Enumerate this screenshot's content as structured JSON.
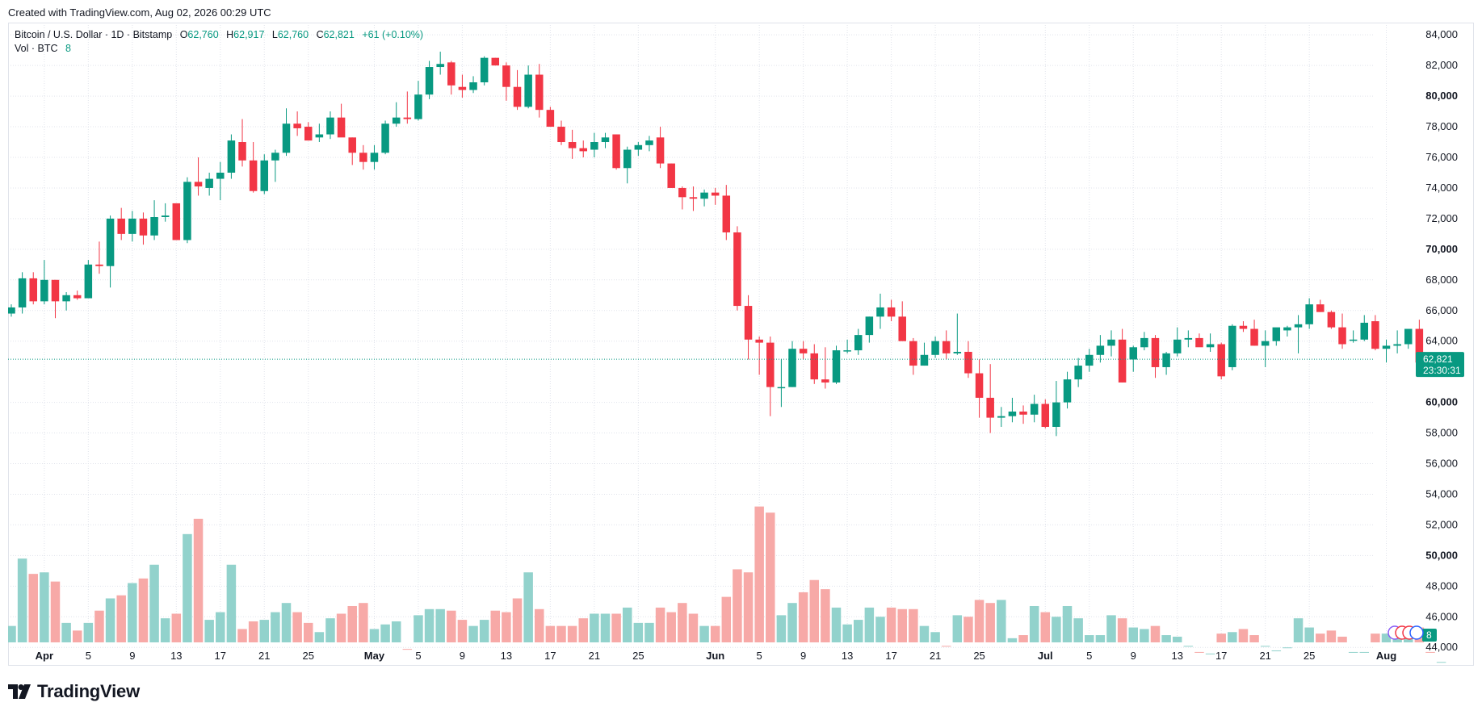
{
  "header": {
    "created_text": "Created with TradingView.com, Aug 02, 2026 00:29 UTC"
  },
  "legend": {
    "symbol": "Bitcoin / U.S. Dollar · 1D · Bitstamp",
    "o_label": "O",
    "o_value": "62,760",
    "h_label": "H",
    "h_value": "62,917",
    "l_label": "L",
    "l_value": "62,760",
    "c_label": "C",
    "c_value": "62,821",
    "change": "+61 (+0.10%)",
    "vol_label": "Vol · BTC",
    "vol_value": "8"
  },
  "price_tag": {
    "price": "62,821",
    "countdown": "23:30:31",
    "price_value": 62821
  },
  "vol_tag": {
    "value": "8"
  },
  "logo": {
    "text": "TradingView"
  },
  "colors": {
    "up": "#089981",
    "down": "#f23645",
    "vol_up": "#92d2cc",
    "vol_down": "#f7a9a7",
    "grid": "#e0e3eb",
    "text": "#131722"
  },
  "chart_data": {
    "type": "candlestick",
    "title": "Bitcoin / U.S. Dollar · 1D · Bitstamp",
    "ylim": [
      42800,
      84800
    ],
    "y_ticks": [
      {
        "v": 84000,
        "t": "84,000",
        "b": false
      },
      {
        "v": 82000,
        "t": "82,000",
        "b": false
      },
      {
        "v": 80000,
        "t": "80,000",
        "b": true
      },
      {
        "v": 78000,
        "t": "78,000",
        "b": false
      },
      {
        "v": 76000,
        "t": "76,000",
        "b": false
      },
      {
        "v": 74000,
        "t": "74,000",
        "b": false
      },
      {
        "v": 72000,
        "t": "72,000",
        "b": false
      },
      {
        "v": 70000,
        "t": "70,000",
        "b": true
      },
      {
        "v": 68000,
        "t": "68,000",
        "b": false
      },
      {
        "v": 66000,
        "t": "66,000",
        "b": false
      },
      {
        "v": 64000,
        "t": "64,000",
        "b": false
      },
      {
        "v": 60000,
        "t": "60,000",
        "b": true
      },
      {
        "v": 58000,
        "t": "58,000",
        "b": false
      },
      {
        "v": 56000,
        "t": "56,000",
        "b": false
      },
      {
        "v": 54000,
        "t": "54,000",
        "b": false
      },
      {
        "v": 52000,
        "t": "52,000",
        "b": false
      },
      {
        "v": 50000,
        "t": "50,000",
        "b": true
      },
      {
        "v": 48000,
        "t": "48,000",
        "b": false
      },
      {
        "v": 46000,
        "t": "46,000",
        "b": false
      },
      {
        "v": 44000,
        "t": "44,000",
        "b": false
      }
    ],
    "x_ticks": [
      {
        "i": 3,
        "t": "Apr",
        "b": true
      },
      {
        "i": 7,
        "t": "5",
        "b": false
      },
      {
        "i": 11,
        "t": "9",
        "b": false
      },
      {
        "i": 15,
        "t": "13",
        "b": false
      },
      {
        "i": 19,
        "t": "17",
        "b": false
      },
      {
        "i": 23,
        "t": "21",
        "b": false
      },
      {
        "i": 27,
        "t": "25",
        "b": false
      },
      {
        "i": 33,
        "t": "May",
        "b": true
      },
      {
        "i": 37,
        "t": "5",
        "b": false
      },
      {
        "i": 41,
        "t": "9",
        "b": false
      },
      {
        "i": 45,
        "t": "13",
        "b": false
      },
      {
        "i": 49,
        "t": "17",
        "b": false
      },
      {
        "i": 53,
        "t": "21",
        "b": false
      },
      {
        "i": 57,
        "t": "25",
        "b": false
      },
      {
        "i": 64,
        "t": "Jun",
        "b": true
      },
      {
        "i": 68,
        "t": "5",
        "b": false
      },
      {
        "i": 72,
        "t": "9",
        "b": false
      },
      {
        "i": 76,
        "t": "13",
        "b": false
      },
      {
        "i": 80,
        "t": "17",
        "b": false
      },
      {
        "i": 84,
        "t": "21",
        "b": false
      },
      {
        "i": 88,
        "t": "25",
        "b": false
      },
      {
        "i": 94,
        "t": "Jul",
        "b": true
      },
      {
        "i": 98,
        "t": "5",
        "b": false
      },
      {
        "i": 102,
        "t": "9",
        "b": false
      },
      {
        "i": 106,
        "t": "13",
        "b": false
      },
      {
        "i": 110,
        "t": "17",
        "b": false
      },
      {
        "i": 114,
        "t": "21",
        "b": false
      },
      {
        "i": 118,
        "t": "25",
        "b": false
      },
      {
        "i": 125,
        "t": "Aug",
        "b": true
      }
    ],
    "candles": [
      [
        65800,
        66400,
        65600,
        66200,
        45400
      ],
      [
        66200,
        68500,
        65800,
        68100,
        49800
      ],
      [
        68100,
        68500,
        66400,
        66600,
        48800
      ],
      [
        66600,
        69300,
        66400,
        68000,
        48900
      ],
      [
        68000,
        68000,
        65500,
        66600,
        48300
      ],
      [
        66600,
        67200,
        66000,
        67000,
        45600
      ],
      [
        67000,
        67300,
        66700,
        66800,
        45100
      ],
      [
        66800,
        69300,
        66800,
        69000,
        45600
      ],
      [
        69000,
        70500,
        68400,
        68900,
        46400
      ],
      [
        68900,
        72200,
        67500,
        72000,
        47200
      ],
      [
        72000,
        72700,
        70600,
        71000,
        47400
      ],
      [
        71000,
        72500,
        70500,
        72000,
        48200
      ],
      [
        72000,
        72400,
        70300,
        70900,
        48500
      ],
      [
        70900,
        73200,
        70600,
        72100,
        49400
      ],
      [
        72100,
        73000,
        71800,
        72200,
        45900
      ],
      [
        73000,
        73000,
        70600,
        70600,
        46200
      ],
      [
        70600,
        74700,
        70400,
        74400,
        51400
      ],
      [
        74400,
        76000,
        73500,
        74100,
        52400
      ],
      [
        74000,
        75000,
        73500,
        74600,
        45800
      ],
      [
        74600,
        75700,
        73200,
        75000,
        46300
      ],
      [
        75000,
        77500,
        74600,
        77100,
        49400
      ],
      [
        77000,
        78500,
        75400,
        75800,
        45200
      ],
      [
        75800,
        77000,
        73700,
        73800,
        45700
      ],
      [
        73800,
        76200,
        73600,
        75800,
        45800
      ],
      [
        75800,
        76500,
        74400,
        76300,
        46300
      ],
      [
        76300,
        79200,
        76100,
        78200,
        46900
      ],
      [
        78200,
        79000,
        77400,
        77900,
        46300
      ],
      [
        78000,
        78300,
        77100,
        77100,
        45600
      ],
      [
        77300,
        78200,
        77000,
        77500,
        45000
      ],
      [
        77500,
        79000,
        77200,
        78600,
        45900
      ],
      [
        78600,
        79500,
        77500,
        77300,
        46200
      ],
      [
        77300,
        77300,
        75500,
        76300,
        46700
      ],
      [
        76300,
        76800,
        75200,
        75700,
        46900
      ],
      [
        75700,
        76800,
        75200,
        76300,
        45200
      ],
      [
        76300,
        78400,
        76200,
        78200,
        45500
      ],
      [
        78200,
        79600,
        78000,
        78600,
        45700
      ],
      [
        78600,
        80300,
        78200,
        78500,
        43900
      ],
      [
        78500,
        81000,
        78400,
        80100,
        46100
      ],
      [
        80100,
        82300,
        79800,
        81900,
        46500
      ],
      [
        81900,
        82900,
        81400,
        82100,
        46500
      ],
      [
        82200,
        82300,
        80100,
        80700,
        46400
      ],
      [
        80600,
        81400,
        79900,
        80400,
        45800
      ],
      [
        80400,
        81300,
        80200,
        80900,
        45400
      ],
      [
        80900,
        82600,
        80700,
        82500,
        45800
      ],
      [
        82500,
        82500,
        82000,
        82000,
        46400
      ],
      [
        82000,
        82200,
        79700,
        80600,
        46300
      ],
      [
        80600,
        81700,
        79100,
        79300,
        47200
      ],
      [
        79300,
        82000,
        79200,
        81400,
        48900
      ],
      [
        81400,
        82100,
        78600,
        79100,
        46500
      ],
      [
        79100,
        79300,
        78000,
        78000,
        45400
      ],
      [
        78000,
        78400,
        76800,
        77000,
        45400
      ],
      [
        77000,
        77800,
        75900,
        76600,
        45400
      ],
      [
        76600,
        77100,
        76000,
        76400,
        45900
      ],
      [
        76500,
        77600,
        76000,
        77000,
        46200
      ],
      [
        77000,
        77600,
        76600,
        77300,
        46200
      ],
      [
        77500,
        77500,
        75200,
        75300,
        46200
      ],
      [
        75300,
        76700,
        74300,
        76500,
        46600
      ],
      [
        76500,
        77000,
        76100,
        76800,
        45600
      ],
      [
        76800,
        77400,
        76400,
        77100,
        45600
      ],
      [
        77300,
        78000,
        75300,
        75600,
        46600
      ],
      [
        75600,
        75600,
        74000,
        74000,
        46300
      ],
      [
        74000,
        74100,
        72600,
        73400,
        46900
      ],
      [
        73400,
        74100,
        72500,
        73300,
        46200
      ],
      [
        73300,
        73900,
        72800,
        73700,
        45400
      ],
      [
        73700,
        74000,
        72900,
        73500,
        45400
      ],
      [
        73500,
        74200,
        70600,
        71100,
        47300
      ],
      [
        71100,
        71500,
        66000,
        66300,
        49100
      ],
      [
        66300,
        67000,
        62800,
        64100,
        48900
      ],
      [
        64100,
        64300,
        61800,
        63900,
        53200
      ],
      [
        63900,
        64300,
        59100,
        61000,
        52800
      ],
      [
        61000,
        62800,
        59700,
        61000,
        46100
      ],
      [
        61000,
        64000,
        61000,
        63500,
        46900
      ],
      [
        63500,
        64000,
        62800,
        63200,
        47600
      ],
      [
        63200,
        63800,
        61200,
        61500,
        48400
      ],
      [
        61500,
        63600,
        60900,
        61300,
        47800
      ],
      [
        61300,
        63700,
        61200,
        63400,
        46600
      ],
      [
        63400,
        64100,
        63200,
        63400,
        45500
      ],
      [
        63400,
        64800,
        63100,
        64400,
        45800
      ],
      [
        64400,
        65600,
        63900,
        65600,
        46600
      ],
      [
        65600,
        67100,
        64800,
        66200,
        46000
      ],
      [
        66200,
        66700,
        65300,
        65600,
        46600
      ],
      [
        65600,
        66600,
        64200,
        64000,
        46500
      ],
      [
        64000,
        64200,
        61800,
        62400,
        46500
      ],
      [
        62400,
        63900,
        62400,
        63100,
        45400
      ],
      [
        63100,
        64300,
        62900,
        64000,
        45000
      ],
      [
        64000,
        64700,
        62800,
        63200,
        44100
      ],
      [
        63200,
        65800,
        63100,
        63300,
        46100
      ],
      [
        63300,
        64000,
        61600,
        61900,
        46000
      ],
      [
        61900,
        62800,
        59000,
        60300,
        47100
      ],
      [
        60300,
        62500,
        58000,
        59000,
        46900
      ],
      [
        59000,
        59700,
        58400,
        59100,
        47100
      ],
      [
        59100,
        60300,
        58700,
        59400,
        44600
      ],
      [
        59400,
        59800,
        58600,
        59200,
        44800
      ],
      [
        59200,
        60500,
        58700,
        59900,
        46700
      ],
      [
        59900,
        60200,
        58300,
        58400,
        46300
      ],
      [
        58400,
        61400,
        57800,
        60000,
        46000
      ],
      [
        60000,
        62000,
        59600,
        61500,
        46700
      ],
      [
        61500,
        62900,
        61000,
        62400,
        45900
      ],
      [
        62400,
        63500,
        62000,
        63100,
        44800
      ],
      [
        63100,
        64400,
        62600,
        63700,
        44800
      ],
      [
        63700,
        64700,
        63000,
        64100,
        46100
      ],
      [
        64100,
        64800,
        61300,
        61300,
        45900
      ],
      [
        62800,
        63700,
        62000,
        63600,
        45300
      ],
      [
        63600,
        64600,
        63400,
        64200,
        45200
      ],
      [
        64200,
        64400,
        61600,
        62300,
        45400
      ],
      [
        62300,
        63300,
        61800,
        63200,
        44800
      ],
      [
        63200,
        64900,
        63000,
        64100,
        44700
      ],
      [
        64100,
        64700,
        63600,
        64200,
        44100
      ],
      [
        64200,
        64500,
        63700,
        63600,
        43700
      ],
      [
        63600,
        64500,
        63300,
        63800,
        43600
      ],
      [
        63800,
        63900,
        61500,
        61700,
        44900
      ],
      [
        62300,
        65100,
        62100,
        65000,
        45000
      ],
      [
        65000,
        65300,
        64600,
        64800,
        45200
      ],
      [
        64800,
        65400,
        63700,
        63700,
        44800
      ],
      [
        63700,
        64700,
        62300,
        64000,
        44100
      ],
      [
        64000,
        64800,
        63700,
        64900,
        43800
      ],
      [
        64700,
        65000,
        64300,
        64900,
        44000
      ],
      [
        64900,
        65700,
        63200,
        65100,
        45900
      ],
      [
        65100,
        66800,
        64800,
        66400,
        45300
      ],
      [
        66400,
        66700,
        65900,
        65900,
        44900
      ],
      [
        65900,
        66000,
        64800,
        64900,
        45100
      ],
      [
        64900,
        65800,
        63500,
        63800,
        44700
      ],
      [
        64100,
        64700,
        63900,
        64100,
        43700
      ],
      [
        64100,
        65700,
        64000,
        65200,
        43700
      ],
      [
        65300,
        65700,
        63400,
        63500,
        44900
      ],
      [
        63500,
        64100,
        62600,
        63700,
        44900
      ],
      [
        63700,
        64700,
        63200,
        63800,
        45100
      ],
      [
        63800,
        64700,
        63500,
        64800,
        45100
      ],
      [
        64800,
        65400,
        62300,
        62600,
        45300
      ],
      [
        62600,
        62900,
        62100,
        62500,
        43700
      ],
      [
        62760,
        62917,
        62760,
        62821,
        43050
      ]
    ]
  }
}
